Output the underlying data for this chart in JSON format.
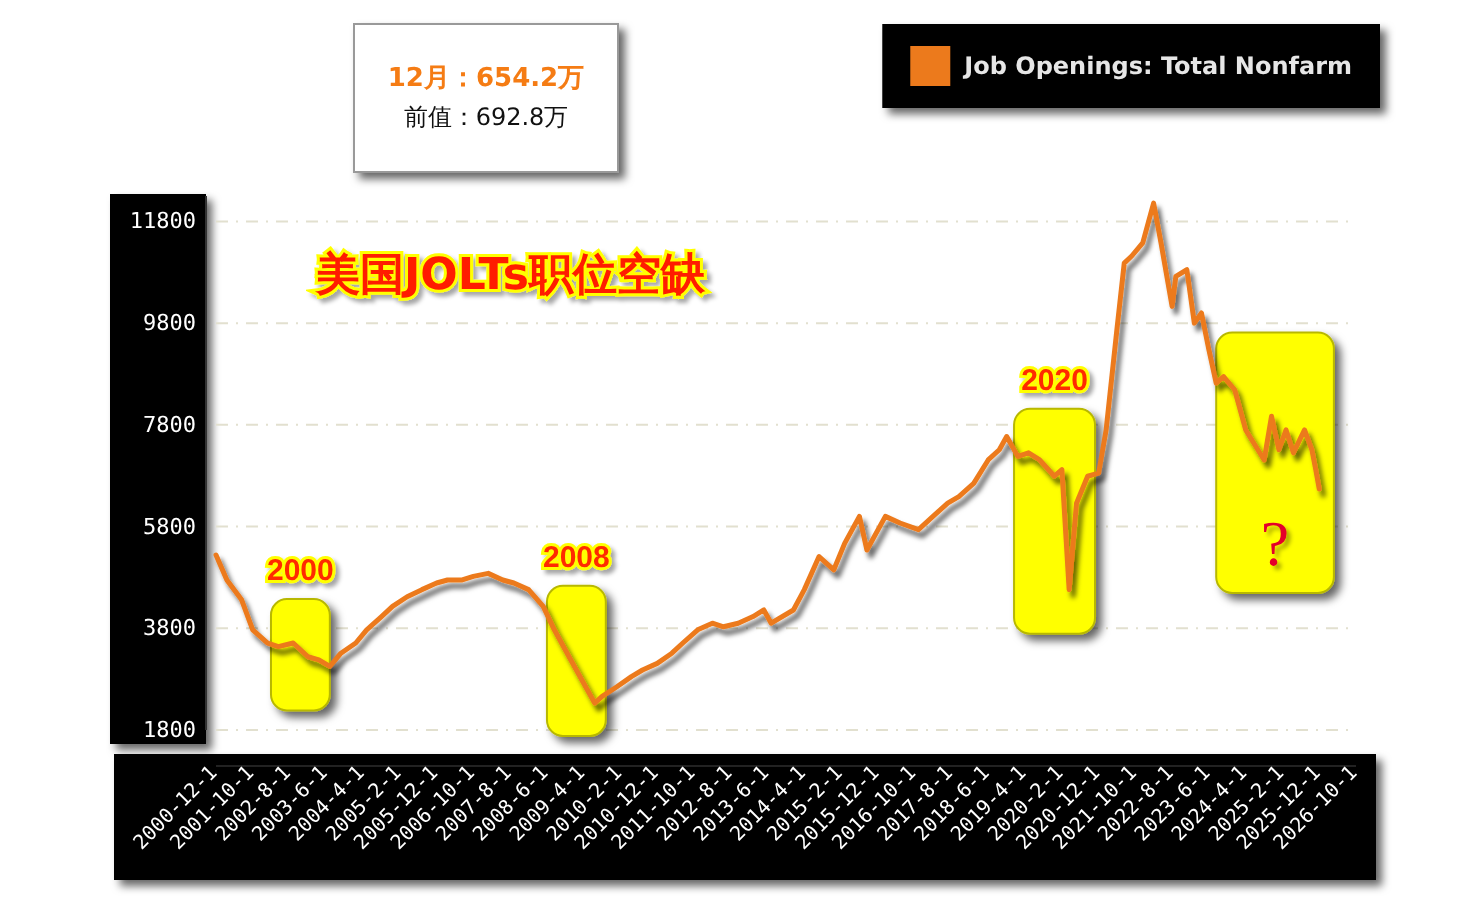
{
  "chart_data": {
    "type": "line",
    "title": "美国JOLTs职位空缺",
    "annotations": [
      "12月：654.2万",
      "前值：692.8万"
    ],
    "x": [
      "2000-12",
      "2001-03",
      "2001-07",
      "2001-10",
      "2002-02",
      "2002-05",
      "2002-09",
      "2003-01",
      "2003-04",
      "2003-07",
      "2003-10",
      "2004-02",
      "2004-05",
      "2004-09",
      "2004-12",
      "2005-04",
      "2005-08",
      "2005-12",
      "2006-03",
      "2006-07",
      "2006-10",
      "2007-02",
      "2007-06",
      "2007-09",
      "2008-01",
      "2008-05",
      "2008-08",
      "2008-12",
      "2009-04",
      "2009-07",
      "2009-09",
      "2010-01",
      "2010-05",
      "2010-08",
      "2010-12",
      "2011-04",
      "2011-07",
      "2011-11",
      "2012-03",
      "2012-06",
      "2012-10",
      "2013-02",
      "2013-05",
      "2013-07",
      "2014-01",
      "2014-04",
      "2014-08",
      "2014-12",
      "2015-03",
      "2015-07",
      "2015-09",
      "2016-02",
      "2016-06",
      "2016-11",
      "2017-03",
      "2017-07",
      "2017-10",
      "2018-02",
      "2018-06",
      "2018-09",
      "2018-11",
      "2019-02",
      "2019-05",
      "2019-08",
      "2019-12",
      "2020-02",
      "2020-04",
      "2020-06",
      "2020-09",
      "2020-12",
      "2021-02",
      "2021-05",
      "2021-07",
      "2021-09",
      "2021-12",
      "2022-03",
      "2022-05",
      "2022-08",
      "2022-09",
      "2022-12",
      "2023-02",
      "2023-04",
      "2023-06",
      "2023-08",
      "2023-10",
      "2024-01",
      "2024-04",
      "2024-09",
      "2024-11",
      "2025-01",
      "2025-03",
      "2025-05",
      "2025-08",
      "2025-10",
      "2025-11",
      "2025-12"
    ],
    "series": [
      {
        "name": "Job Openings: Total Nonfarm",
        "color": "#ec7a1c",
        "values": [
          5240,
          4750,
          4360,
          3770,
          3510,
          3440,
          3510,
          3240,
          3180,
          3050,
          3310,
          3510,
          3770,
          4030,
          4230,
          4420,
          4560,
          4690,
          4750,
          4750,
          4820,
          4880,
          4750,
          4690,
          4560,
          4230,
          3770,
          3240,
          2720,
          2330,
          2460,
          2650,
          2850,
          2980,
          3110,
          3310,
          3510,
          3770,
          3900,
          3830,
          3900,
          4030,
          4160,
          3900,
          4160,
          4560,
          5210,
          4950,
          5470,
          6000,
          5340,
          6000,
          5870,
          5740,
          6000,
          6260,
          6390,
          6650,
          7110,
          7310,
          7570,
          7180,
          7250,
          7110,
          6790,
          6920,
          4560,
          6260,
          6790,
          6850,
          7700,
          9670,
          10980,
          11120,
          11380,
          12160,
          11380,
          10130,
          10720,
          10850,
          9800,
          10000,
          9280,
          8620,
          8750,
          8490,
          7700,
          7110,
          7970,
          7310,
          7700,
          7250,
          7700,
          7310,
          6930,
          6540
        ]
      }
    ],
    "xlim": [
      "2000-12",
      "2026-10"
    ],
    "xticks": [
      {
        "value": "2000-12",
        "label": "2000-12-1"
      },
      {
        "value": "2001-10",
        "label": "2001-10-1"
      },
      {
        "value": "2002-08",
        "label": "2002-8-1"
      },
      {
        "value": "2003-06",
        "label": "2003-6-1"
      },
      {
        "value": "2004-04",
        "label": "2004-4-1"
      },
      {
        "value": "2005-02",
        "label": "2005-2-1"
      },
      {
        "value": "2005-12",
        "label": "2005-12-1"
      },
      {
        "value": "2006-10",
        "label": "2006-10-1"
      },
      {
        "value": "2007-08",
        "label": "2007-8-1"
      },
      {
        "value": "2008-06",
        "label": "2008-6-1"
      },
      {
        "value": "2009-04",
        "label": "2009-4-1"
      },
      {
        "value": "2010-02",
        "label": "2010-2-1"
      },
      {
        "value": "2010-12",
        "label": "2010-12-1"
      },
      {
        "value": "2011-10",
        "label": "2011-10-1"
      },
      {
        "value": "2012-08",
        "label": "2012-8-1"
      },
      {
        "value": "2013-06",
        "label": "2013-6-1"
      },
      {
        "value": "2014-04",
        "label": "2014-4-1"
      },
      {
        "value": "2015-02",
        "label": "2015-2-1"
      },
      {
        "value": "2015-12",
        "label": "2015-12-1"
      },
      {
        "value": "2016-10",
        "label": "2016-10-1"
      },
      {
        "value": "2017-08",
        "label": "2017-8-1"
      },
      {
        "value": "2018-06",
        "label": "2018-6-1"
      },
      {
        "value": "2019-04",
        "label": "2019-4-1"
      },
      {
        "value": "2020-02",
        "label": "2020-2-1"
      },
      {
        "value": "2020-12",
        "label": "2020-12-1"
      },
      {
        "value": "2021-10",
        "label": "2021-10-1"
      },
      {
        "value": "2022-08",
        "label": "2022-8-1"
      },
      {
        "value": "2023-06",
        "label": "2023-6-1"
      },
      {
        "value": "2024-04",
        "label": "2024-4-1"
      },
      {
        "value": "2025-02",
        "label": "2025-2-1"
      },
      {
        "value": "2025-12",
        "label": "2025-12-1"
      },
      {
        "value": "2026-10",
        "label": "2026-10-1"
      }
    ],
    "ylim": [
      1800,
      12300
    ],
    "yticks": [
      1800,
      3800,
      5800,
      7800,
      9800,
      11800
    ],
    "grid": "y",
    "legend": "top right",
    "bands": [
      {
        "axis": "x",
        "from": "2002-03",
        "to": "2003-07",
        "label": "2000",
        "color": "#ffff00"
      },
      {
        "axis": "x",
        "from": "2008-06",
        "to": "2009-10",
        "label": "2008",
        "color": "#ffff00"
      },
      {
        "axis": "x",
        "from": "2019-01",
        "to": "2020-11",
        "label": "2020",
        "color": "#ffff00"
      },
      {
        "axis": "x",
        "from": "2023-08",
        "to": "2026-04",
        "label": "?",
        "color": "#ffff00"
      }
    ]
  }
}
